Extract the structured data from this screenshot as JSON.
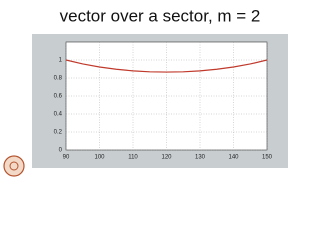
{
  "chart_data": {
    "type": "line",
    "title": "vector over a sector, m = 2",
    "x": [
      90,
      95,
      100,
      105,
      110,
      115,
      120,
      125,
      130,
      135,
      140,
      145,
      150
    ],
    "series": [
      {
        "color": "#c0392b",
        "values": [
          1,
          0.956,
          0.922,
          0.897,
          0.879,
          0.869,
          0.866,
          0.869,
          0.879,
          0.897,
          0.922,
          0.956,
          1
        ]
      }
    ],
    "xlim": [
      90,
      150
    ],
    "xticks": [
      90,
      100,
      110,
      120,
      130,
      140,
      150
    ],
    "ylim": [
      0,
      1.2
    ],
    "yticks": [
      0,
      0.2,
      0.4,
      0.6,
      0.8,
      1
    ],
    "grid": true
  }
}
